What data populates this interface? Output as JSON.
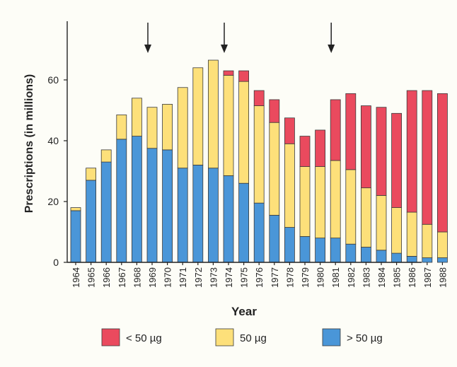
{
  "chart_data": {
    "type": "bar",
    "stacked": true,
    "title": "",
    "xlabel": "Year",
    "ylabel": "Prescriptions (in millions)",
    "ylim": [
      0,
      78
    ],
    "yticks": [
      0,
      20,
      40,
      60
    ],
    "categories": [
      "1964",
      "1965",
      "1966",
      "1967",
      "1968",
      "1969",
      "1970",
      "1971",
      "1972",
      "1973",
      "1974",
      "1975",
      "1976",
      "1977",
      "1978",
      "1979",
      "1980",
      "1981",
      "1982",
      "1983",
      "1984",
      "1985",
      "1986",
      "1987",
      "1988"
    ],
    "series": [
      {
        "name": "> 50 µg",
        "color": "#4a96d8",
        "values": [
          17,
          27,
          33,
          40.5,
          41.5,
          37.5,
          37,
          31,
          32,
          31,
          28.5,
          26,
          19.5,
          15.5,
          11.5,
          8.5,
          8,
          8,
          6,
          5,
          4,
          3,
          2,
          1.5,
          1.5
        ]
      },
      {
        "name": "50 µg",
        "color": "#fde07a",
        "values": [
          1,
          4,
          4,
          8,
          12.5,
          13.5,
          15,
          26.5,
          32,
          35.5,
          33,
          33.5,
          32,
          30.5,
          27.5,
          23,
          23.5,
          25.5,
          24.5,
          19.5,
          18,
          15,
          14.5,
          11,
          8.5
        ]
      },
      {
        "name": "< 50 µg",
        "color": "#ea4a5e",
        "values": [
          0,
          0,
          0,
          0,
          0,
          0,
          0,
          0,
          0,
          0,
          1.5,
          3.5,
          5,
          7.5,
          8.5,
          10,
          12,
          20,
          25,
          27,
          29,
          31,
          40,
          44,
          45.5
        ]
      }
    ],
    "arrows_at": [
      "1969",
      "1974",
      "1981"
    ],
    "grid": false,
    "legend": {
      "position": "bottom",
      "order": [
        "< 50 µg",
        "50 µg",
        "> 50 µg"
      ]
    }
  }
}
